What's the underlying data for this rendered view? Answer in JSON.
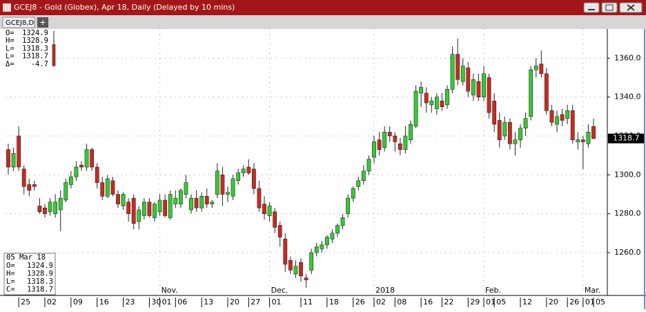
{
  "window": {
    "title": "GCEJ8 - Gold (Globex), Apr 18, Daily (Delayed by 10 mins)",
    "tab": "GCEJ8,D",
    "new_tab": "+"
  },
  "legend": {
    "labels": [
      "O=",
      "H=",
      "L=",
      "L=",
      "Δ="
    ],
    "delta": -4.7
  },
  "data_box": {
    "date": "05 Mar 18",
    "labels": [
      "O=",
      "H=",
      "L=",
      "C="
    ]
  },
  "chart_data": {
    "type": "candlestick",
    "categories": [
      null,
      null,
      "25",
      null,
      null,
      null,
      null,
      "02",
      null,
      null,
      null,
      null,
      "09",
      null,
      null,
      null,
      null,
      "16",
      null,
      null,
      null,
      null,
      "23",
      null,
      null,
      null,
      null,
      "30",
      null,
      "01",
      null,
      null,
      "06",
      null,
      null,
      null,
      null,
      "13",
      null,
      null,
      null,
      null,
      "20",
      null,
      null,
      null,
      "27",
      null,
      null,
      null,
      "01",
      null,
      null,
      null,
      null,
      null,
      "11",
      null,
      null,
      null,
      null,
      "18",
      null,
      null,
      null,
      null,
      "26",
      null,
      null,
      null,
      "02",
      null,
      null,
      null,
      "08",
      null,
      null,
      null,
      null,
      "16",
      null,
      null,
      null,
      "22",
      null,
      null,
      null,
      null,
      "29",
      null,
      null,
      "01",
      null,
      "05",
      null,
      null,
      null,
      null,
      "12",
      null,
      null,
      null,
      null,
      "20",
      null,
      null,
      null,
      "26",
      null,
      null,
      "01",
      null,
      "05"
    ],
    "period_labels": [
      null,
      null,
      null,
      null,
      null,
      null,
      null,
      null,
      null,
      null,
      null,
      null,
      null,
      null,
      null,
      null,
      null,
      null,
      null,
      null,
      null,
      null,
      null,
      null,
      null,
      null,
      null,
      null,
      null,
      "Nov.",
      null,
      null,
      null,
      null,
      null,
      null,
      null,
      null,
      null,
      null,
      null,
      null,
      null,
      null,
      null,
      null,
      null,
      null,
      null,
      null,
      "Dec.",
      null,
      null,
      null,
      null,
      null,
      null,
      null,
      null,
      null,
      null,
      null,
      null,
      null,
      null,
      null,
      null,
      null,
      null,
      null,
      "2018",
      null,
      null,
      null,
      null,
      null,
      null,
      null,
      null,
      null,
      null,
      null,
      null,
      null,
      null,
      null,
      null,
      null,
      null,
      null,
      null,
      "Feb.",
      null,
      null,
      null,
      null,
      null,
      null,
      null,
      null,
      null,
      null,
      null,
      null,
      null,
      null,
      null,
      null,
      null,
      null,
      "Mar.",
      null,
      null
    ],
    "open": [
      1313,
      1304,
      1320,
      1303,
      1295,
      1295,
      1284,
      1283,
      1281,
      1280,
      1282,
      1287,
      1295,
      1299,
      1305,
      1304,
      1313,
      1304,
      1296,
      1289,
      1297,
      1290,
      1284,
      1286,
      1288,
      1276,
      1279,
      1286,
      1278,
      1281,
      1287,
      1278,
      1285,
      1285,
      1290,
      1282,
      1288,
      1283,
      1289,
      1285,
      1290,
      1300,
      1290,
      1289,
      1297,
      1301,
      1304,
      1303,
      1293,
      1285,
      1279,
      1281,
      1274,
      1267,
      1256,
      1249,
      1255,
      1247,
      1251,
      1260,
      1262,
      1264,
      1267,
      1270,
      1274,
      1280,
      1288,
      1294,
      1297,
      1302,
      1309,
      1318,
      1314,
      1322,
      1320,
      1316,
      1313,
      1318,
      1325,
      1342,
      1342,
      1336,
      1334,
      1338,
      1336,
      1344,
      1362,
      1348,
      1355,
      1341,
      1348,
      1340,
      1350,
      1338,
      1328,
      1320,
      1327,
      1316,
      1318,
      1324,
      1330,
      1354,
      1357,
      1352,
      1333,
      1326,
      1331,
      1329,
      1333,
      1317,
      1318,
      1316,
      1324.9
    ],
    "high": [
      1316,
      1314,
      1325,
      1305,
      1298,
      1297,
      1288,
      1285,
      1288,
      1290,
      1292,
      1298,
      1302,
      1307,
      1307,
      1316,
      1314,
      1306,
      1299,
      1300,
      1299,
      1292,
      1291,
      1288,
      1290,
      1284,
      1288,
      1288,
      1286,
      1290,
      1290,
      1292,
      1292,
      1293,
      1300,
      1290,
      1292,
      1291,
      1293,
      1287,
      1306,
      1304,
      1294,
      1300,
      1303,
      1305,
      1308,
      1306,
      1297,
      1289,
      1286,
      1283,
      1276,
      1270,
      1258,
      1256,
      1257,
      1249,
      1262,
      1265,
      1266,
      1269,
      1272,
      1275,
      1280,
      1290,
      1294,
      1299,
      1305,
      1310,
      1320,
      1322,
      1325,
      1325,
      1322,
      1319,
      1325,
      1328,
      1346,
      1348,
      1345,
      1340,
      1342,
      1342,
      1346,
      1366,
      1370,
      1360,
      1358,
      1352,
      1352,
      1356,
      1352,
      1342,
      1332,
      1330,
      1329,
      1322,
      1326,
      1332,
      1356,
      1360,
      1364,
      1355,
      1336,
      1333,
      1334,
      1336,
      1336,
      1322,
      1320,
      1326,
      1328.9
    ],
    "low": [
      1300,
      1302,
      1302,
      1290,
      1289,
      1292,
      1280,
      1278,
      1279,
      1278,
      1271,
      1286,
      1293,
      1297,
      1302,
      1302,
      1302,
      1293,
      1287,
      1288,
      1289,
      1283,
      1282,
      1276,
      1272,
      1272,
      1277,
      1278,
      1276,
      1279,
      1278,
      1277,
      1283,
      1283,
      1288,
      1280,
      1281,
      1281,
      1283,
      1283,
      1288,
      1284,
      1286,
      1287,
      1295,
      1299,
      1300,
      1290,
      1281,
      1277,
      1276,
      1270,
      1263,
      1250,
      1249,
      1247,
      1245,
      1242,
      1249,
      1258,
      1260,
      1262,
      1265,
      1268,
      1272,
      1278,
      1286,
      1292,
      1295,
      1300,
      1306,
      1310,
      1312,
      1317,
      1312,
      1310,
      1311,
      1316,
      1324,
      1335,
      1332,
      1332,
      1331,
      1333,
      1334,
      1342,
      1346,
      1346,
      1340,
      1338,
      1338,
      1338,
      1329,
      1322,
      1314,
      1318,
      1313,
      1310,
      1314,
      1320,
      1328,
      1350,
      1350,
      1331,
      1325,
      1322,
      1325,
      1326,
      1316,
      1313,
      1303,
      1314,
      1318.3
    ],
    "close": [
      1304,
      1311,
      1304,
      1294,
      1292,
      1294,
      1281,
      1280,
      1286,
      1286,
      1288,
      1296,
      1299,
      1304,
      1304,
      1313,
      1304,
      1296,
      1289,
      1298,
      1290,
      1285,
      1290,
      1280,
      1275,
      1282,
      1286,
      1279,
      1285,
      1287,
      1279,
      1290,
      1288,
      1292,
      1296,
      1288,
      1283,
      1289,
      1285,
      1286,
      1302,
      1290,
      1291,
      1298,
      1301,
      1303,
      1301,
      1293,
      1283,
      1280,
      1284,
      1273,
      1268,
      1254,
      1251,
      1253,
      1248,
      1246,
      1260,
      1263,
      1264,
      1268,
      1270,
      1274,
      1278,
      1288,
      1293,
      1297,
      1302,
      1308,
      1317,
      1313,
      1322,
      1320,
      1317,
      1313,
      1320,
      1326,
      1343,
      1345,
      1337,
      1338,
      1340,
      1335,
      1344,
      1362,
      1349,
      1356,
      1343,
      1349,
      1340,
      1352,
      1332,
      1326,
      1318,
      1327,
      1316,
      1318,
      1324,
      1329,
      1354,
      1356,
      1352,
      1333,
      1327,
      1330,
      1328,
      1333,
      1318,
      1318,
      1317,
      1322,
      1318.7
    ],
    "up_color": "#33cc33",
    "down_color": "#cc2a1f",
    "ylim": [
      1238,
      1375
    ],
    "yticks": [
      {
        "value": 1260,
        "label": "1260.0"
      },
      {
        "value": 1280,
        "label": "1280.0"
      },
      {
        "value": 1300,
        "label": "1300.0"
      },
      {
        "value": 1320,
        "label": "1320.0"
      },
      {
        "value": 1340,
        "label": "1340.0"
      },
      {
        "value": 1360,
        "label": "1360.0"
      }
    ],
    "grid": true
  }
}
